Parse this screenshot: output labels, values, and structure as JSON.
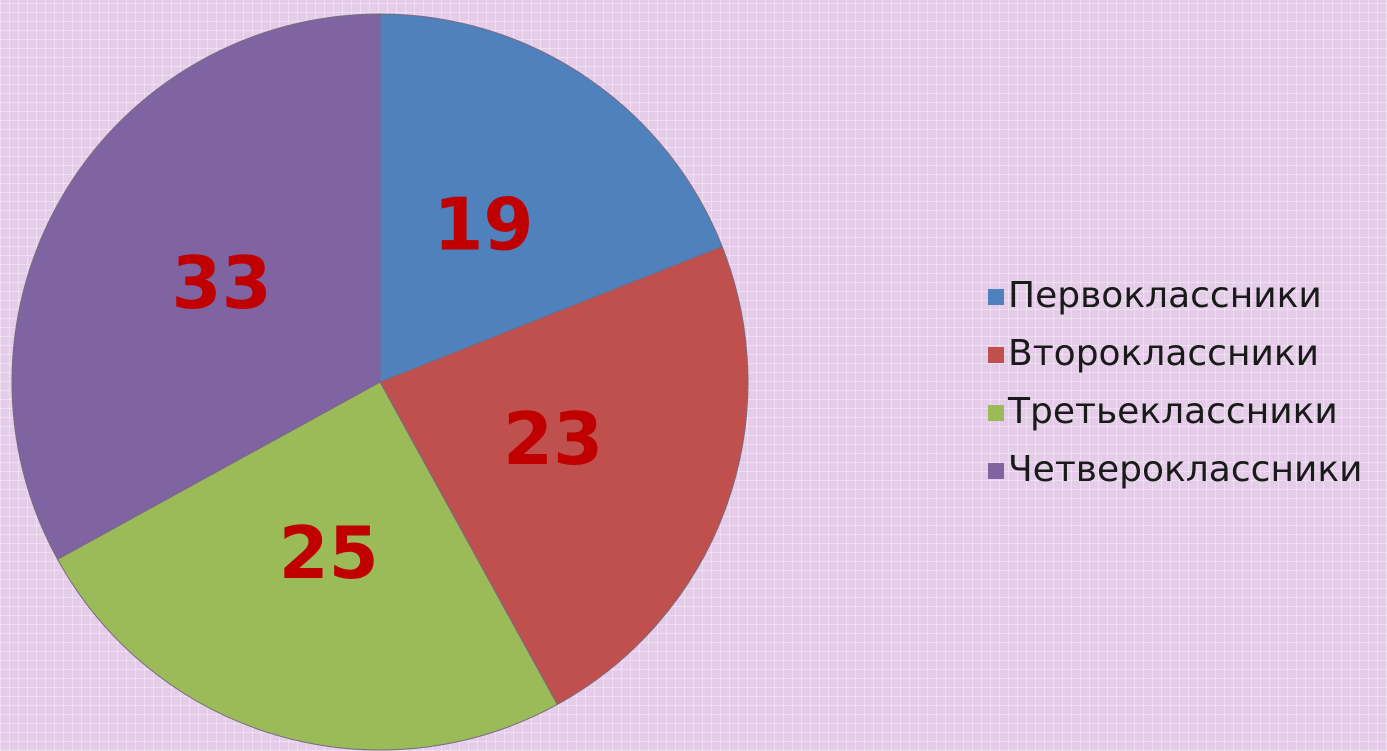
{
  "chart_data": {
    "type": "pie",
    "categories": [
      "Первоклассники",
      "Второклассники",
      "Третьеклассники",
      "Четвероклассники"
    ],
    "values": [
      19,
      23,
      25,
      33
    ],
    "colors": [
      "#4f81bd",
      "#c0504d",
      "#9bbb59",
      "#8064a2"
    ],
    "label_color": "#c00000",
    "legend": "right"
  }
}
